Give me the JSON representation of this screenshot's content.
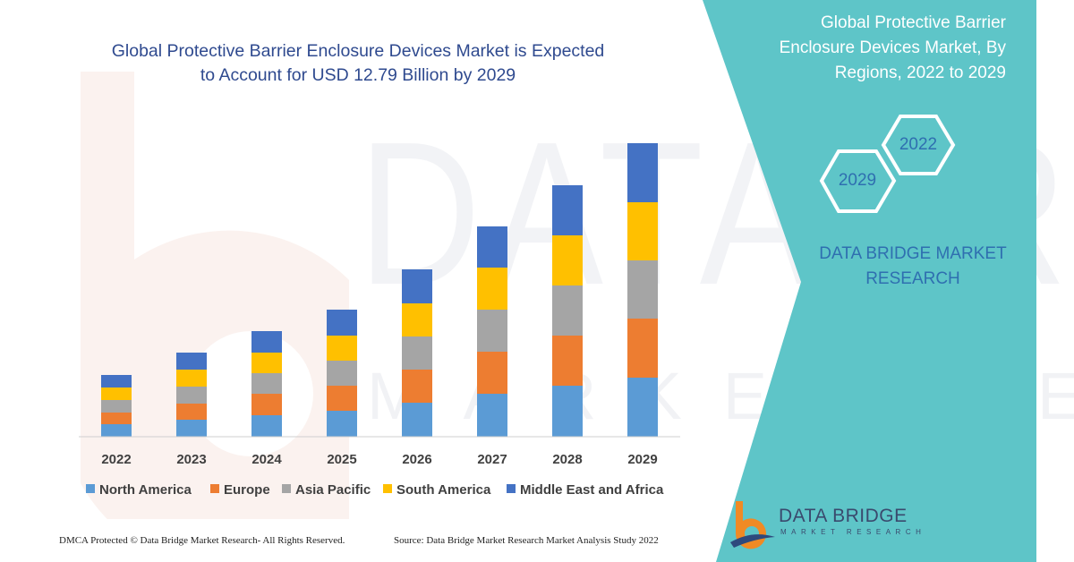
{
  "chart_data": {
    "type": "bar",
    "stacked": true,
    "title": "Global Protective Barrier Enclosure Devices Market is Expected to Account for USD 12.79 Billion by 2029",
    "title_lines": [
      "Global Protective Barrier Enclosure Devices Market is Expected",
      "to Account for USD 12.79 Billion by 2029"
    ],
    "categories": [
      "2022",
      "2023",
      "2024",
      "2025",
      "2026",
      "2027",
      "2028",
      "2029"
    ],
    "series": [
      {
        "name": "North America",
        "color": "#5b9bd5",
        "values": [
          14,
          19,
          24,
          29,
          38,
          48,
          57,
          66
        ]
      },
      {
        "name": "Europe",
        "color": "#ed7d31",
        "values": [
          13,
          18,
          24,
          28,
          37,
          47,
          56,
          66
        ]
      },
      {
        "name": "Asia Pacific",
        "color": "#a5a5a5",
        "values": [
          14,
          19,
          23,
          28,
          37,
          47,
          56,
          65
        ]
      },
      {
        "name": "South America",
        "color": "#ffc000",
        "values": [
          14,
          19,
          23,
          28,
          37,
          47,
          56,
          65
        ]
      },
      {
        "name": "Middle East and Africa",
        "color": "#4472c4",
        "values": [
          14,
          19,
          24,
          29,
          38,
          46,
          56,
          66
        ]
      }
    ],
    "ylim": [
      0,
      340
    ],
    "grid": false,
    "legend": "bottom"
  },
  "side": {
    "title_lines": [
      "Global Protective Barrier",
      "Enclosure Devices Market, By",
      "Regions, 2022 to 2029"
    ],
    "hex_start": "2022",
    "hex_end": "2029",
    "brand_lines": [
      "DATA BRIDGE MARKET",
      "RESEARCH"
    ]
  },
  "watermark": {
    "main": "DATABRIDGE",
    "sub": "MARKET RESEARCH"
  },
  "footer": {
    "left": "DMCA Protected © Data Bridge Market Research- All Rights Reserved.",
    "right": "Source: Data Bridge Market Research Market Analysis Study 2022"
  },
  "logo": {
    "name": "DATA BRIDGE",
    "sub": "MARKET RESEARCH"
  },
  "colors": {
    "panel": "#5ec5c8",
    "title": "#2f4a8f",
    "brand": "#2f6fb0",
    "logo_orange": "#f08a24",
    "logo_navy": "#2e4a7d"
  }
}
